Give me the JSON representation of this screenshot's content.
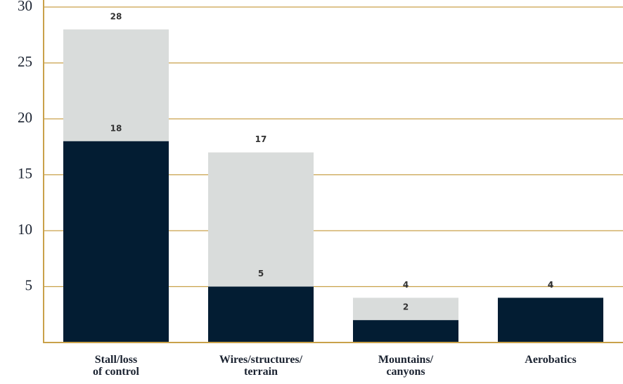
{
  "chart_data": {
    "type": "bar",
    "overlay": true,
    "categories": [
      "Stall/loss\nof control",
      "Wires/structures/\nterrain",
      "Mountains/\ncanyons",
      "Aerobatics"
    ],
    "series": [
      {
        "color": "#d9dcdb",
        "values": [
          28,
          17,
          4,
          4
        ]
      },
      {
        "color": "#031d33",
        "values": [
          18,
          5,
          2,
          4
        ]
      }
    ],
    "ylim": [
      0,
      30
    ],
    "yticks": [
      5,
      10,
      15,
      20,
      25,
      30
    ],
    "grid": true,
    "grid_color": "#c9a14a"
  }
}
